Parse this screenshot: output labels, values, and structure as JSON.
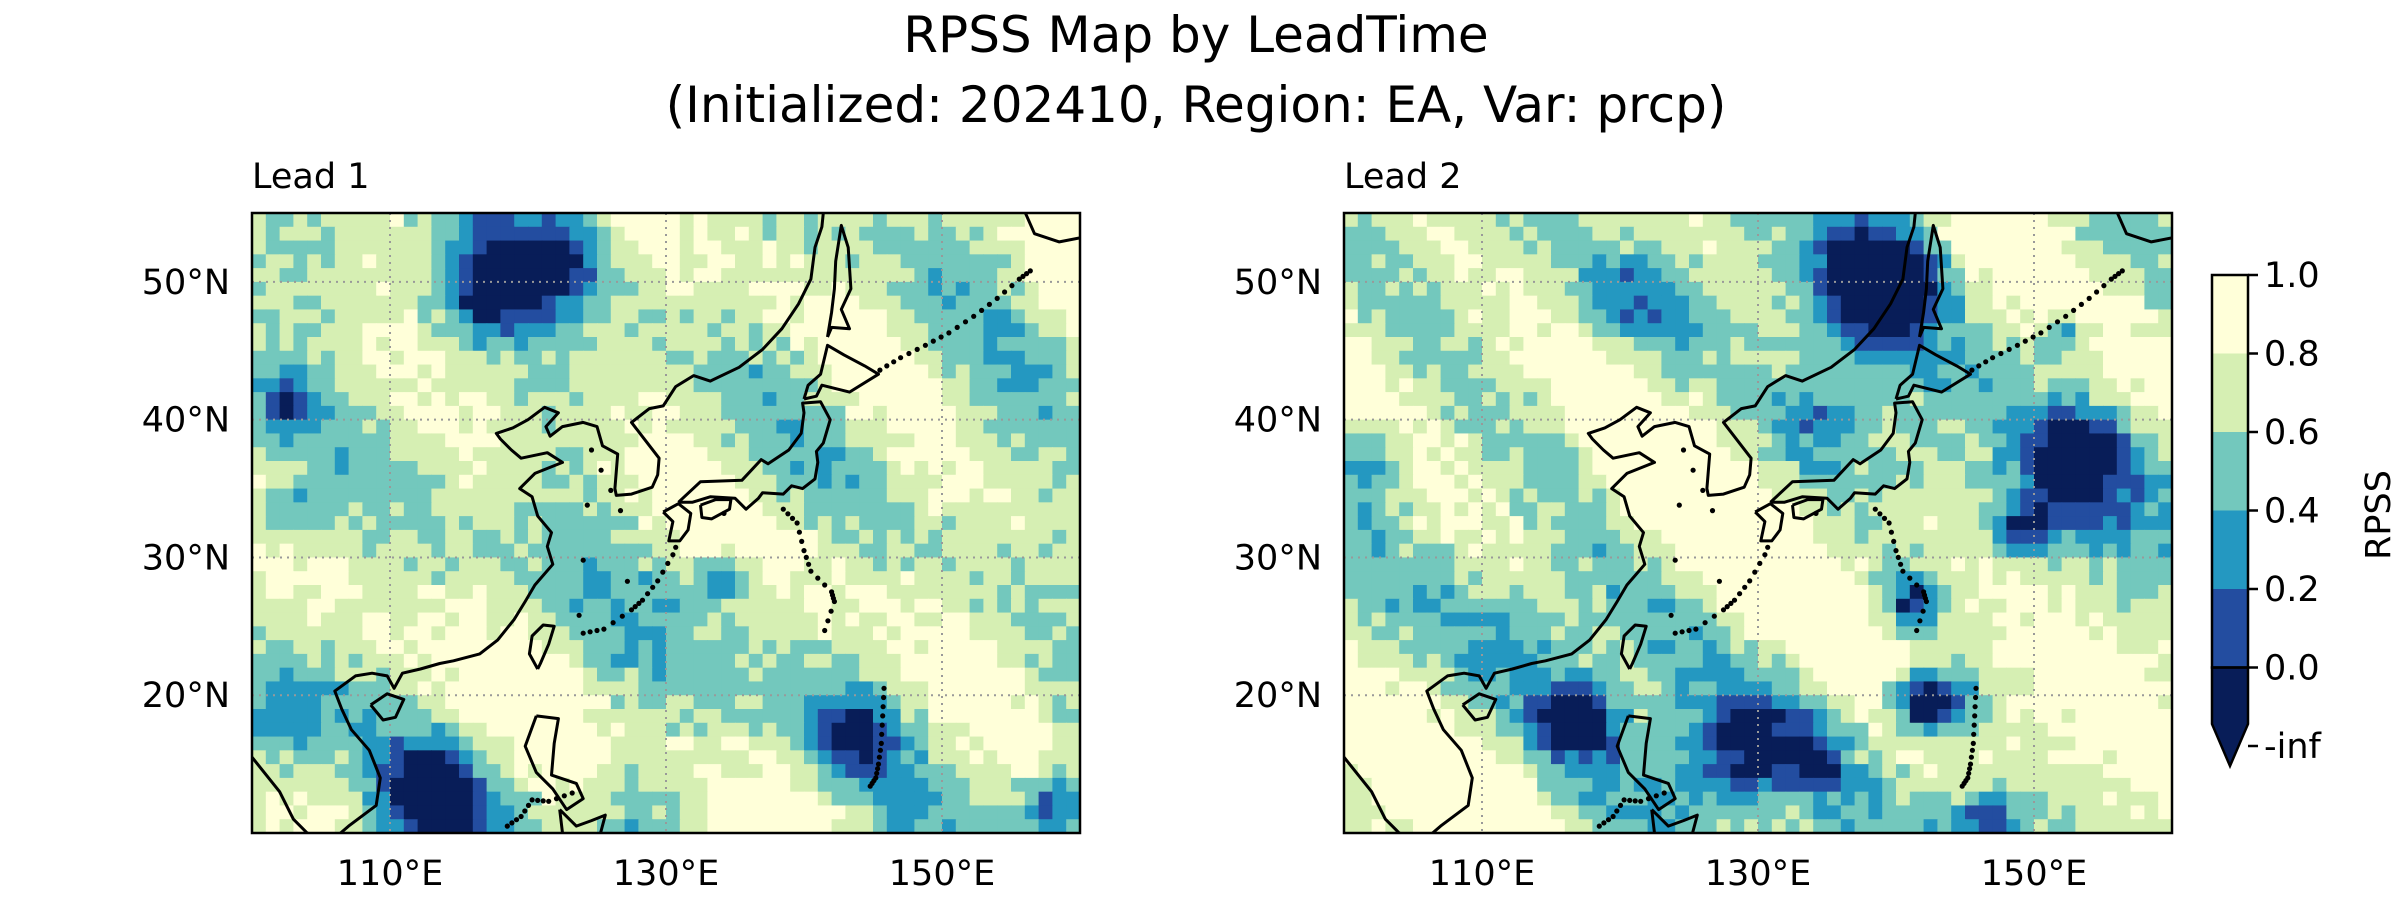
{
  "figure": {
    "title_line1": "RPSS Map by LeadTime",
    "title_line2": "(Initialized: 202410, Region: EA, Var: prcp)"
  },
  "panels": [
    {
      "title": "Lead 1",
      "seed": 11
    },
    {
      "title": "Lead 2",
      "seed": 47
    }
  ],
  "axes": {
    "lat_labels": [
      "50°N",
      "40°N",
      "30°N",
      "20°N"
    ],
    "lat_values": [
      50,
      40,
      30,
      20
    ],
    "lon_labels": [
      "110°E",
      "130°E",
      "150°E"
    ],
    "lon_values": [
      110,
      130,
      150
    ],
    "extent": {
      "lon_min": 100,
      "lon_max": 160,
      "lat_min": 10,
      "lat_max": 55
    }
  },
  "colorbar": {
    "label": "RPSS",
    "tick_labels": [
      "1.0",
      "0.8",
      "0.6",
      "0.4",
      "0.2",
      "0.0",
      "-inf"
    ],
    "colors": [
      "#ffffd9",
      "#d6efb3",
      "#73c8bd",
      "#2498c1",
      "#234da0",
      "#081d58"
    ]
  }
}
